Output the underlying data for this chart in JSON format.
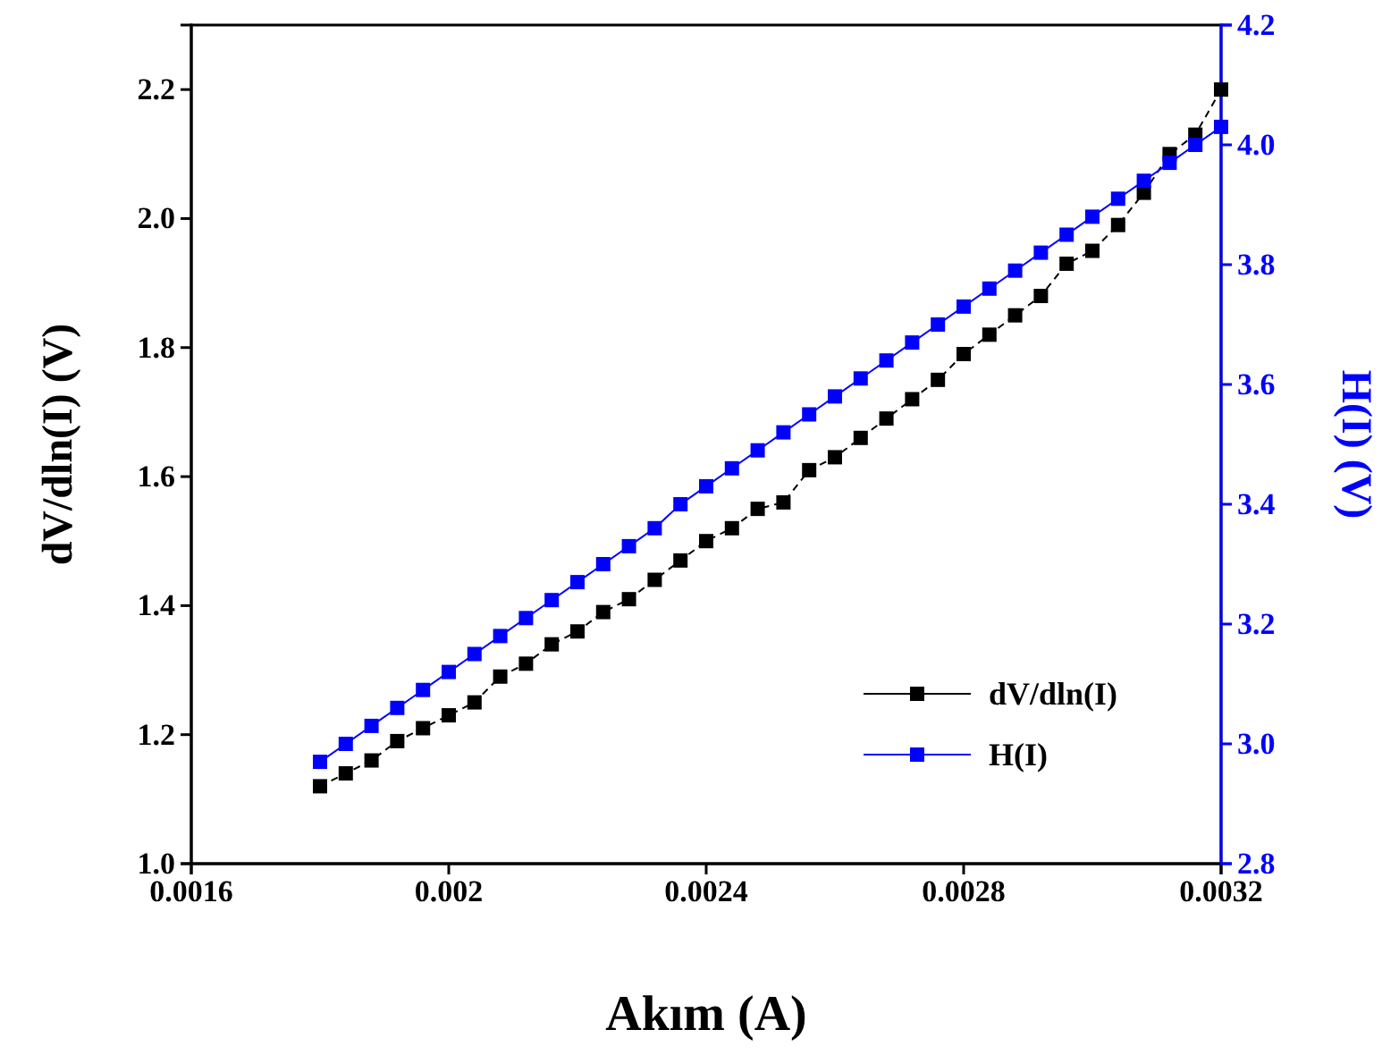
{
  "chart_data": {
    "type": "line",
    "xlabel": "Akım (A)",
    "ylabel": "dV/dln(I) (V)",
    "y2label": "H(I) (V)",
    "x": [
      0.0018,
      0.00184,
      0.00188,
      0.00192,
      0.00196,
      0.002,
      0.00204,
      0.00208,
      0.00212,
      0.00216,
      0.0022,
      0.00224,
      0.00228,
      0.00232,
      0.00236,
      0.0024,
      0.00244,
      0.00248,
      0.00252,
      0.00256,
      0.0026,
      0.00264,
      0.00268,
      0.00272,
      0.00276,
      0.0028,
      0.00284,
      0.00288,
      0.00292,
      0.00296,
      0.003,
      0.00304,
      0.00308,
      0.00312,
      0.00316,
      0.0032
    ],
    "series": [
      {
        "name": "dV/dln(I)",
        "color": "#000000",
        "line_style": "dashed",
        "values": [
          1.12,
          1.14,
          1.16,
          1.19,
          1.21,
          1.23,
          1.25,
          1.29,
          1.31,
          1.34,
          1.36,
          1.39,
          1.41,
          1.44,
          1.47,
          1.5,
          1.52,
          1.55,
          1.56,
          1.61,
          1.63,
          1.66,
          1.69,
          1.72,
          1.75,
          1.79,
          1.82,
          1.85,
          1.88,
          1.93,
          1.95,
          1.99,
          2.04,
          2.1,
          2.13,
          2.2
        ]
      },
      {
        "name": "H(I)",
        "color": "#0000ff",
        "axis": "y2",
        "line_style": "solid",
        "values": [
          2.97,
          3.0,
          3.03,
          3.06,
          3.09,
          3.12,
          3.15,
          3.18,
          3.21,
          3.24,
          3.27,
          3.3,
          3.33,
          3.36,
          3.4,
          3.43,
          3.46,
          3.49,
          3.52,
          3.55,
          3.58,
          3.61,
          3.64,
          3.67,
          3.7,
          3.73,
          3.76,
          3.79,
          3.82,
          3.85,
          3.88,
          3.91,
          3.94,
          3.97,
          4.0,
          4.03
        ]
      }
    ],
    "xlim": [
      0.0016,
      0.0032
    ],
    "xticks": [
      0.0016,
      0.002,
      0.0024,
      0.0028,
      0.0032
    ],
    "ylim": [
      1.0,
      2.3
    ],
    "yticks": [
      {
        "value": 1,
        "label": "1.0"
      },
      1.2,
      1.4,
      1.6,
      1.8,
      {
        "value": 2,
        "label": "2.0"
      },
      2.2
    ],
    "y2lim": [
      2.8,
      4.2
    ],
    "y2ticks": [
      2.8,
      {
        "value": 3,
        "label": "3.0"
      },
      3.2,
      3.4,
      3.6,
      3.8,
      {
        "value": 4,
        "label": "4.0"
      },
      4.2
    ],
    "marker": "square",
    "legend": "bottom right",
    "grid": false
  }
}
